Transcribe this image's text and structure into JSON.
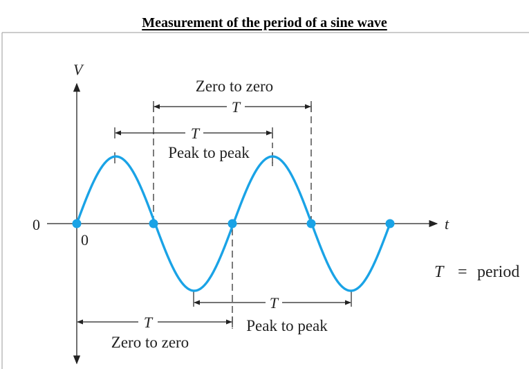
{
  "title": "Measurement of the period of a sine wave",
  "axes": {
    "y_label": "V",
    "x_label": "t",
    "zero_left": "0",
    "zero_origin": "0"
  },
  "annotations": {
    "top_zero_to_zero_caption": "Zero to zero",
    "top_zero_to_zero_T": "T",
    "top_peak_to_peak_T": "T",
    "top_peak_to_peak_caption": "Peak to peak",
    "bottom_peak_to_peak_T": "T",
    "bottom_peak_to_peak_caption": "Peak to peak",
    "bottom_zero_to_zero_T": "T",
    "bottom_zero_to_zero_caption": "Zero to zero"
  },
  "legend": {
    "T": "T",
    "equals": "=",
    "period": "period"
  },
  "colors": {
    "wave": "#1aa3e6",
    "axis": "#222222"
  }
}
